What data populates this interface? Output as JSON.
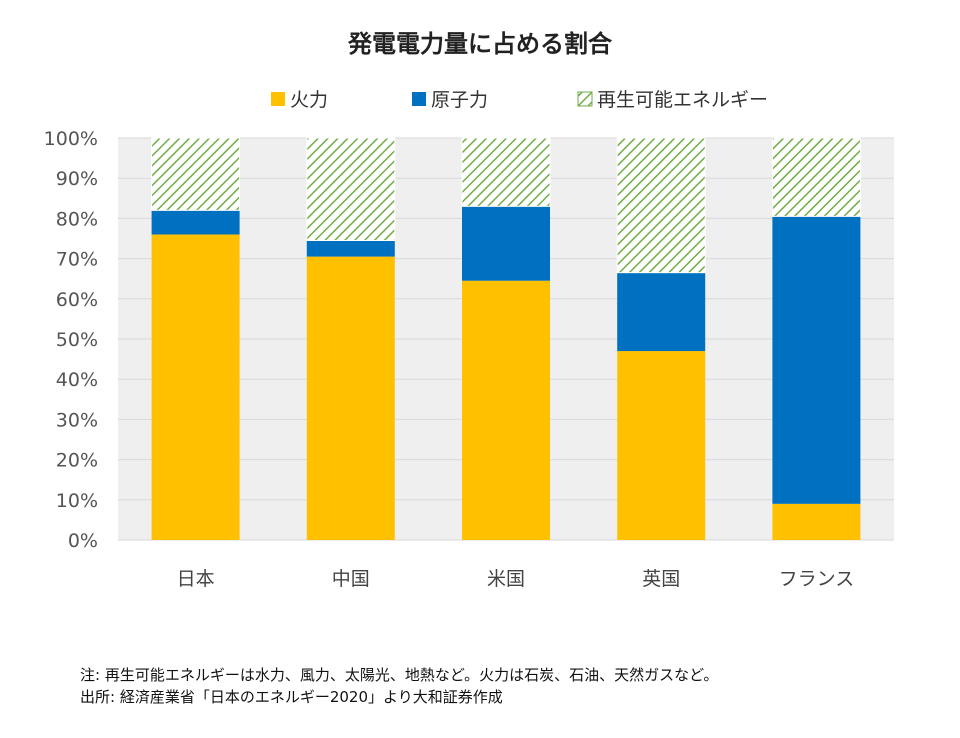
{
  "chart_data": {
    "type": "bar",
    "stacked": true,
    "title": "発電電力量に占める割合",
    "categories": [
      "日本",
      "中国",
      "米国",
      "英国",
      "フランス"
    ],
    "series": [
      {
        "name": "火力",
        "values": [
          76,
          70.5,
          64.5,
          47,
          9
        ],
        "color": "#FFC000",
        "pattern": "solid"
      },
      {
        "name": "原子力",
        "values": [
          6,
          4,
          18.5,
          19.5,
          71.5
        ],
        "color": "#0070C0",
        "pattern": "solid"
      },
      {
        "name": "再生可能エネルギー",
        "values": [
          18,
          25.5,
          17,
          33.5,
          19.5
        ],
        "color": "#70AD47",
        "pattern": "diagonal-hatch"
      }
    ],
    "ylim": [
      0,
      100
    ],
    "yticks": [
      0,
      10,
      20,
      30,
      40,
      50,
      60,
      70,
      80,
      90,
      100
    ],
    "ytick_labels": [
      "0%",
      "10%",
      "20%",
      "30%",
      "40%",
      "50%",
      "60%",
      "70%",
      "80%",
      "90%",
      "100%"
    ],
    "grid": true,
    "legend_position": "top",
    "plot_background": "#EFEFEF",
    "xlabel": "",
    "ylabel": ""
  },
  "notes": {
    "line1": "注: 再生可能エネルギーは水力、風力、太陽光、地熱など。火力は石炭、石油、天然ガスなど。",
    "line2": "出所: 経済産業省「日本のエネルギー2020」より大和証券作成"
  }
}
